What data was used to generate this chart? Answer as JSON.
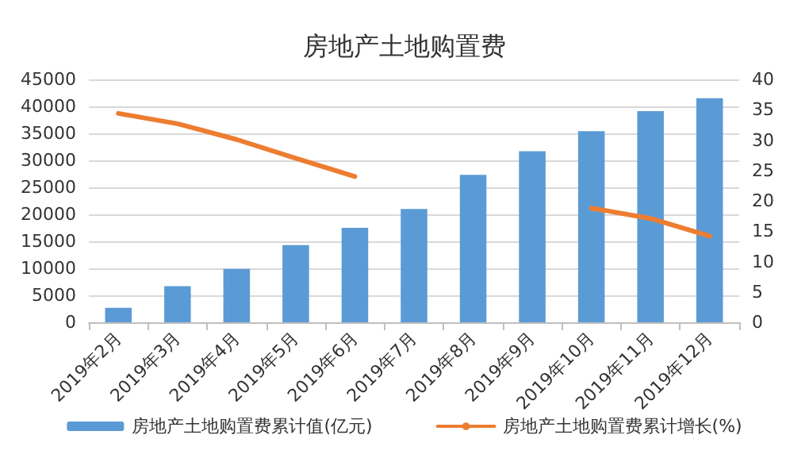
{
  "chart_data": {
    "type": "bar",
    "title": "房地产土地购置费",
    "categories": [
      "2019年2月",
      "2019年3月",
      "2019年4月",
      "2019年5月",
      "2019年6月",
      "2019年7月",
      "2019年8月",
      "2019年9月",
      "2019年10月",
      "2019年11月",
      "2019年12月"
    ],
    "series": [
      {
        "name": "房地产土地购置费累计值(亿元)",
        "color": "#5b9bd5",
        "values": [
          2700,
          6700,
          9900,
          14300,
          17500,
          21000,
          27300,
          31700,
          35400,
          39100,
          41500
        ]
      },
      {
        "name": "房地产土地购置费累计增长(%)",
        "type": "line",
        "axis": "y2",
        "color": "#ed7d31",
        "values": [
          34.4,
          32.7,
          30.1,
          27.0,
          24.0,
          null,
          null,
          null,
          18.8,
          17.1,
          14.2
        ]
      }
    ],
    "ylim": [
      0,
      45000
    ],
    "yticks": [
      0,
      5000,
      10000,
      15000,
      20000,
      25000,
      30000,
      35000,
      40000,
      45000
    ],
    "y2lim": [
      0,
      40
    ],
    "y2ticks": [
      0,
      5,
      10,
      15,
      20,
      25,
      30,
      35,
      40
    ],
    "grid": "y",
    "legend": "bottom",
    "marker": "none",
    "line_style": "solid"
  }
}
